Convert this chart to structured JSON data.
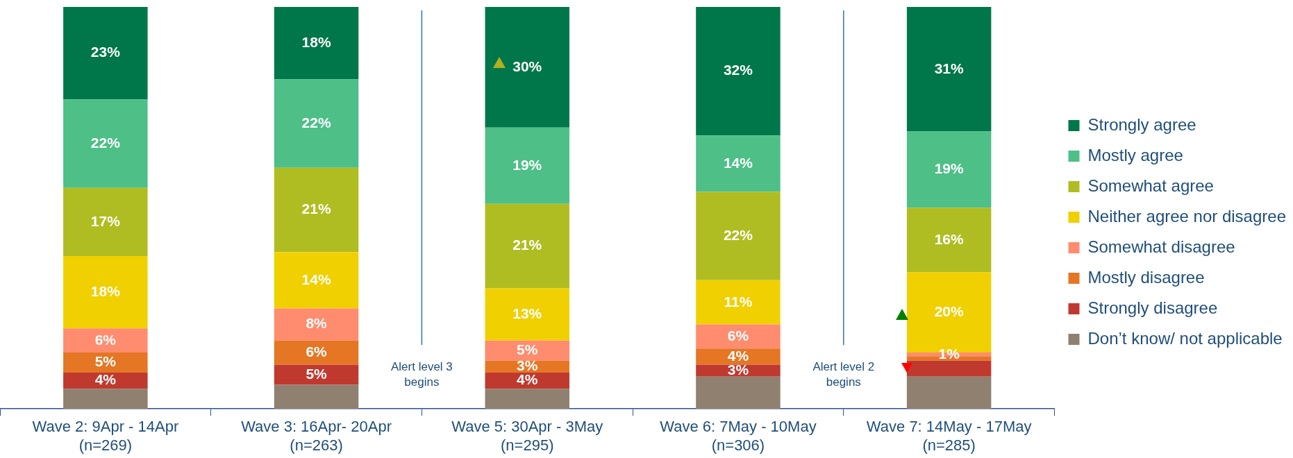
{
  "chart_data": {
    "type": "bar",
    "stacked": true,
    "legend": "right",
    "data_labels": true,
    "grid": false,
    "tick_labels": "x",
    "categories": [
      "Wave 2: 9Apr - 14Apr\n(n=269)",
      "Wave 3: 16Apr- 20Apr\n(n=263)",
      "Wave 5: 30Apr - 3May\n(n=295)",
      "Wave 6: 7May - 10May\n(n=306)",
      "Wave 7: 14May - 17May\n(n=285)"
    ],
    "series": [
      {
        "name": "Don’t know/ not applicable",
        "color": "#8f8070",
        "values": [
          5,
          6,
          5,
          8,
          8
        ],
        "value_labels": [
          null,
          null,
          null,
          null,
          null
        ]
      },
      {
        "name": "Strongly disagree",
        "color": "#c0392f",
        "values": [
          4,
          5,
          4,
          3,
          4
        ],
        "value_labels": [
          "4%",
          "5%",
          "4%",
          "3%",
          null
        ]
      },
      {
        "name": "Mostly disagree",
        "color": "#e57624",
        "values": [
          5,
          6,
          3,
          4,
          1
        ],
        "value_labels": [
          "5%",
          "6%",
          "3%",
          "4%",
          null
        ]
      },
      {
        "name": "Somewhat disagree",
        "color": "#ff8c6e",
        "values": [
          6,
          8,
          5,
          6,
          1
        ],
        "value_labels": [
          "6%",
          "8%",
          "5%",
          "6%",
          "1%"
        ]
      },
      {
        "name": "Neither agree nor disagree",
        "color": "#f0d000",
        "values": [
          18,
          14,
          13,
          11,
          20
        ],
        "value_labels": [
          "18%",
          "14%",
          "13%",
          "11%",
          "20%"
        ]
      },
      {
        "name": "Somewhat agree",
        "color": "#b0bd22",
        "values": [
          17,
          21,
          21,
          22,
          16
        ],
        "value_labels": [
          "17%",
          "21%",
          "21%",
          "22%",
          "16%"
        ]
      },
      {
        "name": "Mostly agree",
        "color": "#4dbf87",
        "values": [
          22,
          22,
          19,
          14,
          19
        ],
        "value_labels": [
          "22%",
          "22%",
          "19%",
          "14%",
          "19%"
        ]
      },
      {
        "name": "Strongly agree",
        "color": "#00774a",
        "values": [
          23,
          18,
          30,
          32,
          31
        ],
        "value_labels": [
          "23%",
          "18%",
          "30%",
          "32%",
          "31%"
        ]
      }
    ],
    "annotations": [
      "Alert level 3 begins",
      "Alert level 2 begins"
    ]
  }
}
